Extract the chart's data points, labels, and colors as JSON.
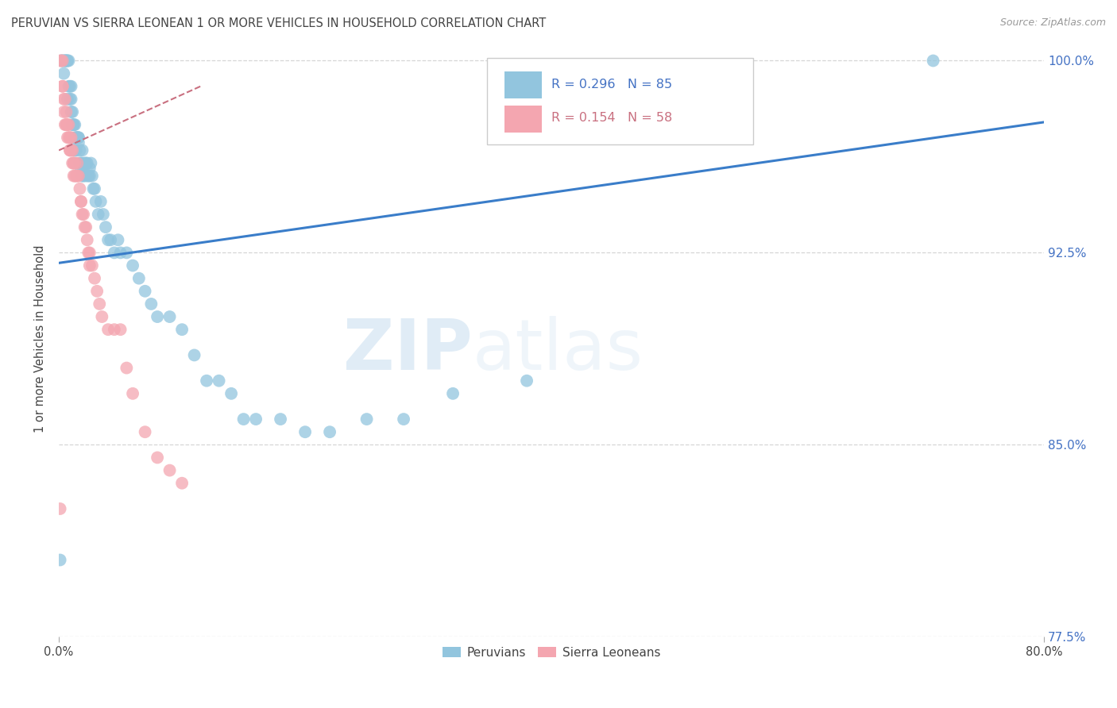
{
  "title": "PERUVIAN VS SIERRA LEONEAN 1 OR MORE VEHICLES IN HOUSEHOLD CORRELATION CHART",
  "source": "Source: ZipAtlas.com",
  "ylabel": "1 or more Vehicles in Household",
  "xlim": [
    0.0,
    0.8
  ],
  "ylim": [
    0.775,
    1.008
  ],
  "x_ticks": [
    0.0,
    0.8
  ],
  "x_tick_labels": [
    "0.0%",
    "80.0%"
  ],
  "y_ticks": [
    0.775,
    0.85,
    0.925,
    1.0
  ],
  "y_tick_labels": [
    "77.5%",
    "85.0%",
    "92.5%",
    "100.0%"
  ],
  "blue_R": 0.296,
  "blue_N": 85,
  "pink_R": 0.154,
  "pink_N": 58,
  "blue_color": "#92c5de",
  "pink_color": "#f4a6b0",
  "blue_line_color": "#3a7dc9",
  "pink_line_color": "#c97080",
  "watermark_zip": "ZIP",
  "watermark_atlas": "atlas",
  "background_color": "#ffffff",
  "grid_color": "#cccccc",
  "blue_x": [
    0.002,
    0.003,
    0.004,
    0.005,
    0.005,
    0.006,
    0.006,
    0.007,
    0.007,
    0.008,
    0.008,
    0.009,
    0.009,
    0.01,
    0.01,
    0.011,
    0.011,
    0.012,
    0.012,
    0.013,
    0.013,
    0.014,
    0.014,
    0.015,
    0.015,
    0.016,
    0.016,
    0.017,
    0.017,
    0.018,
    0.018,
    0.019,
    0.019,
    0.02,
    0.02,
    0.021,
    0.022,
    0.023,
    0.024,
    0.025,
    0.026,
    0.027,
    0.028,
    0.029,
    0.03,
    0.032,
    0.034,
    0.036,
    0.038,
    0.04,
    0.042,
    0.045,
    0.048,
    0.05,
    0.055,
    0.06,
    0.065,
    0.07,
    0.075,
    0.08,
    0.09,
    0.1,
    0.11,
    0.12,
    0.13,
    0.14,
    0.15,
    0.16,
    0.18,
    0.2,
    0.22,
    0.25,
    0.28,
    0.32,
    0.38,
    0.004,
    0.007,
    0.01,
    0.013,
    0.016,
    0.019,
    0.022,
    0.025,
    0.71,
    0.001
  ],
  "blue_y": [
    1.0,
    1.0,
    1.0,
    1.0,
    1.0,
    1.0,
    1.0,
    1.0,
    1.0,
    1.0,
    0.99,
    0.99,
    0.985,
    0.99,
    0.985,
    0.98,
    0.975,
    0.975,
    0.975,
    0.97,
    0.965,
    0.965,
    0.97,
    0.97,
    0.97,
    0.968,
    0.97,
    0.965,
    0.96,
    0.96,
    0.958,
    0.955,
    0.96,
    0.955,
    0.958,
    0.96,
    0.955,
    0.96,
    0.955,
    0.958,
    0.96,
    0.955,
    0.95,
    0.95,
    0.945,
    0.94,
    0.945,
    0.94,
    0.935,
    0.93,
    0.93,
    0.925,
    0.93,
    0.925,
    0.925,
    0.92,
    0.915,
    0.91,
    0.905,
    0.9,
    0.9,
    0.895,
    0.885,
    0.875,
    0.875,
    0.87,
    0.86,
    0.86,
    0.86,
    0.855,
    0.855,
    0.86,
    0.86,
    0.87,
    0.875,
    0.995,
    0.985,
    0.98,
    0.975,
    0.97,
    0.965,
    0.96,
    0.955,
    1.0,
    0.805
  ],
  "pink_x": [
    0.001,
    0.002,
    0.003,
    0.003,
    0.004,
    0.004,
    0.005,
    0.005,
    0.006,
    0.006,
    0.007,
    0.007,
    0.008,
    0.008,
    0.009,
    0.009,
    0.01,
    0.01,
    0.011,
    0.011,
    0.012,
    0.012,
    0.013,
    0.013,
    0.014,
    0.015,
    0.016,
    0.017,
    0.018,
    0.019,
    0.02,
    0.021,
    0.022,
    0.023,
    0.024,
    0.025,
    0.027,
    0.029,
    0.031,
    0.033,
    0.035,
    0.04,
    0.045,
    0.05,
    0.055,
    0.06,
    0.07,
    0.08,
    0.09,
    0.1,
    0.003,
    0.006,
    0.009,
    0.012,
    0.015,
    0.018,
    0.025,
    0.001
  ],
  "pink_y": [
    1.0,
    1.0,
    1.0,
    0.99,
    0.985,
    0.98,
    0.985,
    0.975,
    0.98,
    0.975,
    0.97,
    0.975,
    0.975,
    0.97,
    0.965,
    0.97,
    0.97,
    0.965,
    0.965,
    0.96,
    0.96,
    0.955,
    0.955,
    0.96,
    0.955,
    0.96,
    0.955,
    0.95,
    0.945,
    0.94,
    0.94,
    0.935,
    0.935,
    0.93,
    0.925,
    0.925,
    0.92,
    0.915,
    0.91,
    0.905,
    0.9,
    0.895,
    0.895,
    0.895,
    0.88,
    0.87,
    0.855,
    0.845,
    0.84,
    0.835,
    0.99,
    0.975,
    0.965,
    0.96,
    0.955,
    0.945,
    0.92,
    0.825
  ],
  "blue_line_x": [
    0.0,
    0.8
  ],
  "blue_line_y": [
    0.921,
    0.976
  ],
  "pink_line_x": [
    0.0,
    0.115
  ],
  "pink_line_y": [
    0.965,
    0.99
  ]
}
